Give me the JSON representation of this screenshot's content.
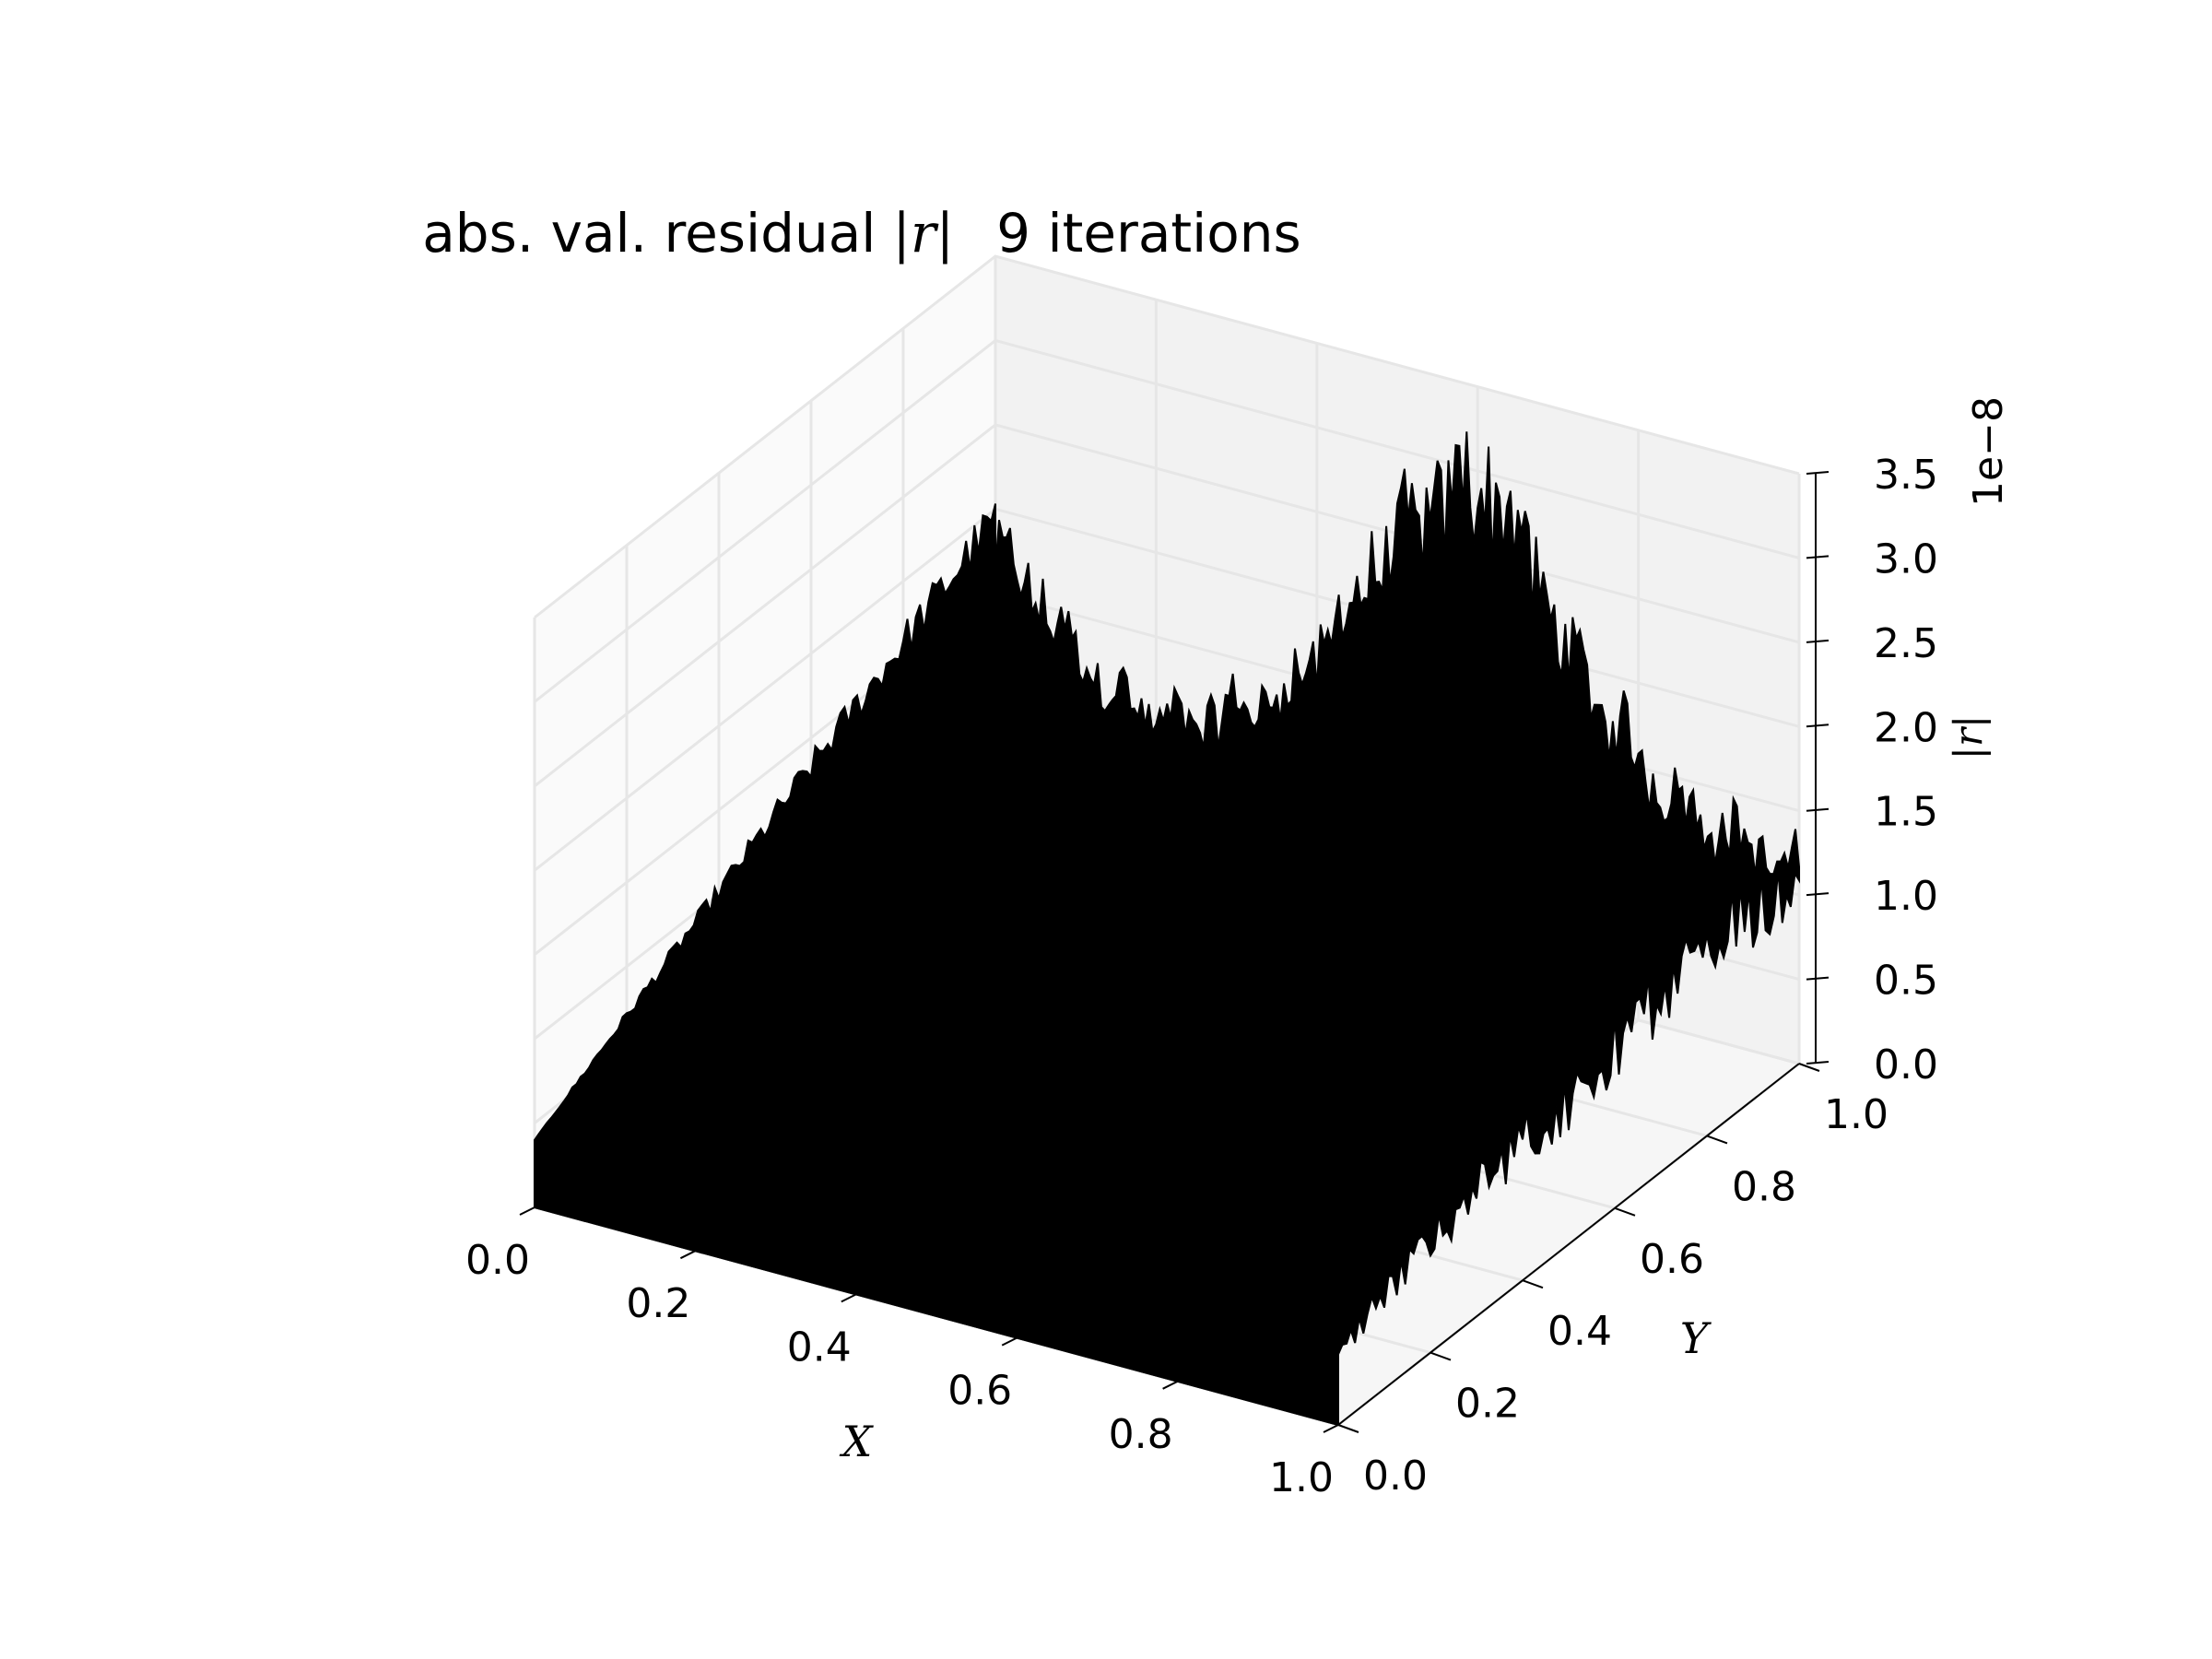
{
  "chart_data": {
    "type": "surface3d",
    "title_text": "abs. val. residual",
    "title_symbol": "|r|",
    "title_suffix": "9 iterations",
    "xlabel": "X",
    "ylabel": "Y",
    "zlabel": "|r|",
    "z_offset_label": "1e−8",
    "xlim": [
      0.0,
      1.0
    ],
    "ylim": [
      0.0,
      1.0
    ],
    "zlim": [
      0.0,
      3.5
    ],
    "z_scale": 1e-08,
    "x_ticks": [
      "0.0",
      "0.2",
      "0.4",
      "0.6",
      "0.8",
      "1.0"
    ],
    "y_ticks": [
      "0.0",
      "0.2",
      "0.4",
      "0.6",
      "0.8",
      "1.0"
    ],
    "z_ticks": [
      "0.0",
      "0.5",
      "1.0",
      "1.5",
      "2.0",
      "2.5",
      "3.0",
      "3.5"
    ],
    "grid": true,
    "surface_color": "#000000",
    "edge_color": "#000000",
    "pane_colors": [
      "#f2f2f2",
      "#f6f6f6",
      "#fafafa"
    ],
    "grid_color": "#e6e6e6",
    "profile_y_max": {
      "x": [
        0.0,
        0.05,
        0.1,
        0.15,
        0.2,
        0.25,
        0.3,
        0.35,
        0.4,
        0.45,
        0.5,
        0.55,
        0.6,
        0.65,
        0.7,
        0.75,
        0.8,
        0.85,
        0.9,
        0.95,
        1.0
      ],
      "y": [
        1.8,
        1.6,
        1.3,
        1.1,
        1.0,
        1.05,
        1.2,
        1.35,
        1.7,
        2.2,
        2.6,
        2.9,
        3.2,
        2.9,
        2.3,
        1.9,
        1.6,
        1.4,
        1.3,
        1.2,
        1.1
      ]
    },
    "profile_x_max": {
      "y": [
        0.0,
        0.1,
        0.2,
        0.3,
        0.4,
        0.5,
        0.6,
        0.7,
        0.8,
        0.9,
        1.0
      ],
      "z": [
        0.4,
        0.6,
        0.7,
        0.8,
        0.85,
        0.9,
        1.0,
        1.1,
        1.15,
        1.2,
        1.1
      ]
    }
  }
}
